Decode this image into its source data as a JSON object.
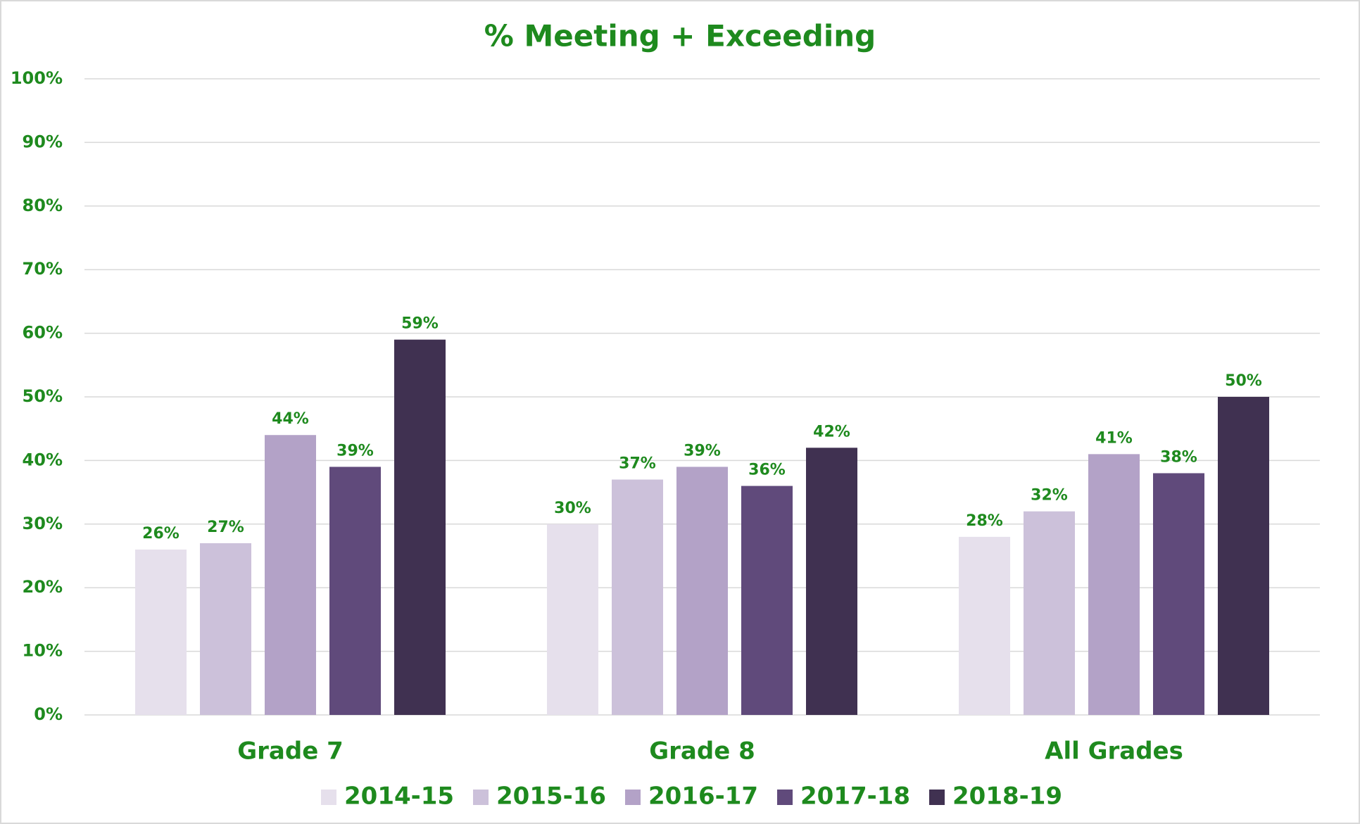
{
  "chart_data": {
    "type": "bar",
    "title": "% Meeting + Exceeding",
    "categories": [
      "Grade 7",
      "Grade 8",
      "All Grades"
    ],
    "series": [
      {
        "name": "2014-15",
        "color": "#e6e0ec",
        "values": [
          26,
          30,
          28
        ],
        "value_labels": [
          "26%",
          "30%",
          "28%"
        ]
      },
      {
        "name": "2015-16",
        "color": "#ccc1da",
        "values": [
          27,
          37,
          32
        ],
        "value_labels": [
          "27%",
          "37%",
          "32%"
        ]
      },
      {
        "name": "2016-17",
        "color": "#b3a2c7",
        "values": [
          44,
          39,
          41
        ],
        "value_labels": [
          "44%",
          "39%",
          "41%"
        ]
      },
      {
        "name": "2017-18",
        "color": "#604a7b",
        "values": [
          39,
          36,
          38
        ],
        "value_labels": [
          "39%",
          "36%",
          "38%"
        ]
      },
      {
        "name": "2018-19",
        "color": "#403151",
        "values": [
          59,
          42,
          50
        ],
        "value_labels": [
          "59%",
          "42%",
          "50%"
        ]
      }
    ],
    "ylim": [
      0,
      100
    ],
    "yticks": [
      {
        "value": 0,
        "label": "0%"
      },
      {
        "value": 10,
        "label": "10%"
      },
      {
        "value": 20,
        "label": "20%"
      },
      {
        "value": 30,
        "label": "30%"
      },
      {
        "value": 40,
        "label": "40%"
      },
      {
        "value": 50,
        "label": "50%"
      },
      {
        "value": 60,
        "label": "60%"
      },
      {
        "value": 70,
        "label": "70%"
      },
      {
        "value": 80,
        "label": "80%"
      },
      {
        "value": 90,
        "label": "90%"
      },
      {
        "value": 100,
        "label": "100%"
      }
    ],
    "grid": true,
    "legend": "bottom"
  }
}
